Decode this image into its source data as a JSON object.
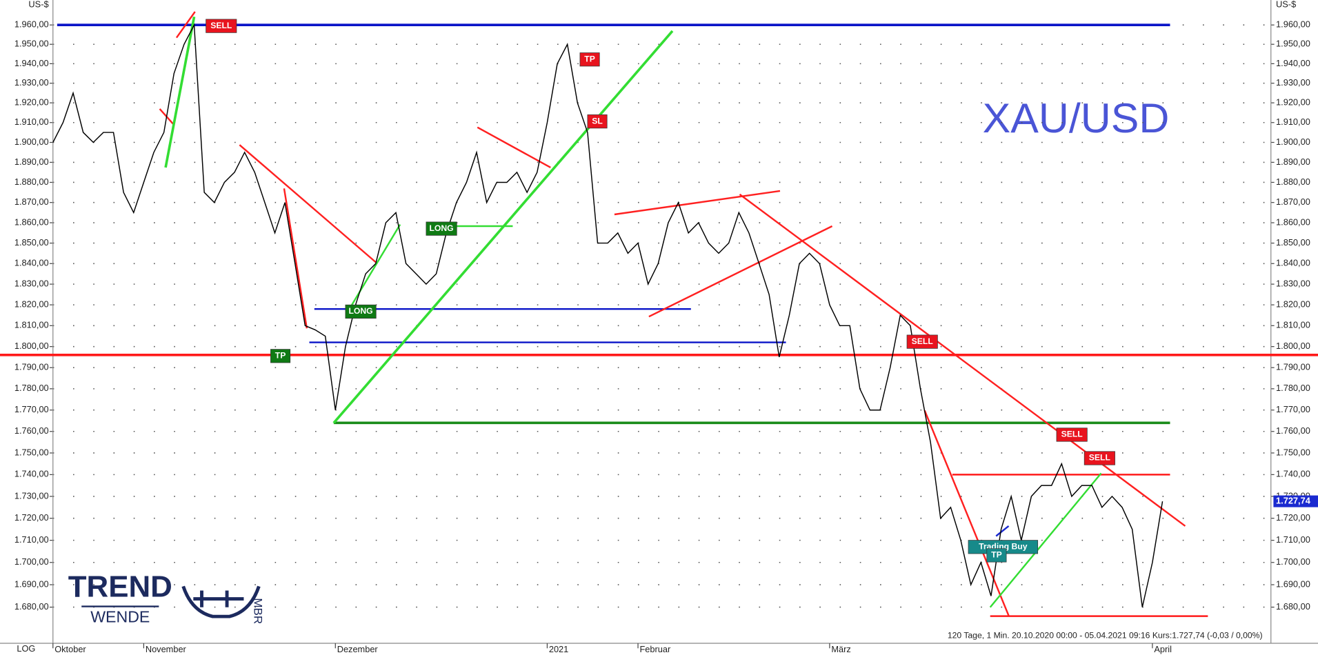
{
  "chart_data": {
    "type": "line",
    "watermark": "XAU/USD",
    "y_unit": "US-$",
    "scale_label": "LOG",
    "log_scale": true,
    "grid": true,
    "color": "#000000",
    "footer": "120 Tage, 1 Min. 20.10.2020 00:00 - 05.04.2021 09:16  Kurs:1.727,74 (-0,03 / 0,00%)",
    "price_label": "1.727,74",
    "logo_text": [
      "TREND",
      "WENDE"
    ],
    "logo_mark": "MBR",
    "categories": [
      "Oktober",
      null,
      null,
      null,
      null,
      null,
      null,
      null,
      null,
      "November",
      null,
      null,
      null,
      null,
      null,
      null,
      null,
      null,
      null,
      null,
      null,
      null,
      null,
      null,
      null,
      null,
      null,
      null,
      "Dezember",
      null,
      null,
      null,
      null,
      null,
      null,
      null,
      null,
      null,
      null,
      null,
      null,
      null,
      null,
      null,
      null,
      null,
      null,
      null,
      null,
      "2021",
      null,
      null,
      null,
      null,
      null,
      null,
      null,
      null,
      "Februar",
      null,
      null,
      null,
      null,
      null,
      null,
      null,
      null,
      null,
      null,
      null,
      null,
      null,
      null,
      null,
      null,
      null,
      null,
      "März",
      null,
      null,
      null,
      null,
      null,
      null,
      null,
      null,
      null,
      null,
      null,
      null,
      null,
      null,
      null,
      null,
      null,
      null,
      null,
      null,
      null,
      null,
      null,
      null,
      null,
      null,
      null,
      null,
      null,
      null,
      null,
      "April",
      null
    ],
    "values": [
      1900,
      1910,
      1925,
      1905,
      1900,
      1905,
      1905,
      1875,
      1865,
      1880,
      1895,
      1905,
      1935,
      1950,
      1960,
      1875,
      1870,
      1880,
      1885,
      1895,
      1885,
      1870,
      1855,
      1870,
      1840,
      1810,
      1808,
      1805,
      1770,
      1800,
      1820,
      1835,
      1840,
      1860,
      1865,
      1840,
      1835,
      1830,
      1835,
      1855,
      1870,
      1880,
      1895,
      1870,
      1880,
      1880,
      1885,
      1875,
      1885,
      1910,
      1940,
      1950,
      1920,
      1905,
      1850,
      1850,
      1855,
      1845,
      1850,
      1830,
      1840,
      1860,
      1870,
      1855,
      1860,
      1850,
      1845,
      1850,
      1865,
      1855,
      1840,
      1825,
      1795,
      1815,
      1840,
      1845,
      1840,
      1820,
      1810,
      1810,
      1780,
      1770,
      1770,
      1790,
      1815,
      1810,
      1780,
      1755,
      1720,
      1725,
      1710,
      1690,
      1700,
      1685,
      1715,
      1730,
      1710,
      1730,
      1735,
      1735,
      1745,
      1730,
      1735,
      1735,
      1725,
      1730,
      1725,
      1715,
      1680,
      1700,
      1727.74
    ],
    "ylim": [
      1664,
      1973
    ],
    "yticks": [
      {
        "value": 1680,
        "label": "1.680,00"
      },
      {
        "value": 1690,
        "label": "1.690,00"
      },
      {
        "value": 1700,
        "label": "1.700,00"
      },
      {
        "value": 1710,
        "label": "1.710,00"
      },
      {
        "value": 1720,
        "label": "1.720,00"
      },
      {
        "value": 1730,
        "label": "1.730,00"
      },
      {
        "value": 1740,
        "label": "1.740,00"
      },
      {
        "value": 1750,
        "label": "1.750,00"
      },
      {
        "value": 1760,
        "label": "1.760,00"
      },
      {
        "value": 1770,
        "label": "1.770,00"
      },
      {
        "value": 1780,
        "label": "1.780,00"
      },
      {
        "value": 1790,
        "label": "1.790,00"
      },
      {
        "value": 1800,
        "label": "1.800,00"
      },
      {
        "value": 1810,
        "label": "1.810,00"
      },
      {
        "value": 1820,
        "label": "1.820,00"
      },
      {
        "value": 1830,
        "label": "1.830,00"
      },
      {
        "value": 1840,
        "label": "1.840,00"
      },
      {
        "value": 1850,
        "label": "1.850,00"
      },
      {
        "value": 1860,
        "label": "1.860,00"
      },
      {
        "value": 1870,
        "label": "1.870,00"
      },
      {
        "value": 1880,
        "label": "1.880,00"
      },
      {
        "value": 1890,
        "label": "1.890,00"
      },
      {
        "value": 1900,
        "label": "1.900,00"
      },
      {
        "value": 1910,
        "label": "1.910,00"
      },
      {
        "value": 1920,
        "label": "1.920,00"
      },
      {
        "value": 1930,
        "label": "1.930,00"
      },
      {
        "value": 1940,
        "label": "1.940,00"
      },
      {
        "value": 1950,
        "label": "1.950,00"
      },
      {
        "value": 1960,
        "label": "1.960,00"
      }
    ],
    "levels": [
      {
        "value": 1960,
        "color": "#0a14c8"
      },
      {
        "value": 1796,
        "color": "#ff1a1a"
      },
      {
        "value": 1764,
        "color": "#1a8c1a"
      },
      {
        "value": 1818,
        "color": "#0a14c8"
      },
      {
        "value": 1802,
        "color": "#0a14c8"
      },
      {
        "value": 1740,
        "color": "#ff1a1a"
      },
      {
        "value": 1676,
        "color": "#ff1a1a"
      }
    ],
    "annotations": [
      {
        "text": "SELL",
        "color": "#e8141e"
      },
      {
        "text": "TP",
        "color": "#e8141e"
      },
      {
        "text": "SL",
        "color": "#e8141e"
      },
      {
        "text": "LONG",
        "color": "#0f7a14"
      },
      {
        "text": "LONG",
        "color": "#0f7a14"
      },
      {
        "text": "TP",
        "color": "#0f7a14"
      },
      {
        "text": "SELL",
        "color": "#e8141e"
      },
      {
        "text": "SELL",
        "color": "#e8141e"
      },
      {
        "text": "SELL",
        "color": "#e8141e"
      },
      {
        "text": "Trading Buy",
        "color": "#178a8a"
      },
      {
        "text": "TP",
        "color": "#178a8a"
      }
    ]
  }
}
